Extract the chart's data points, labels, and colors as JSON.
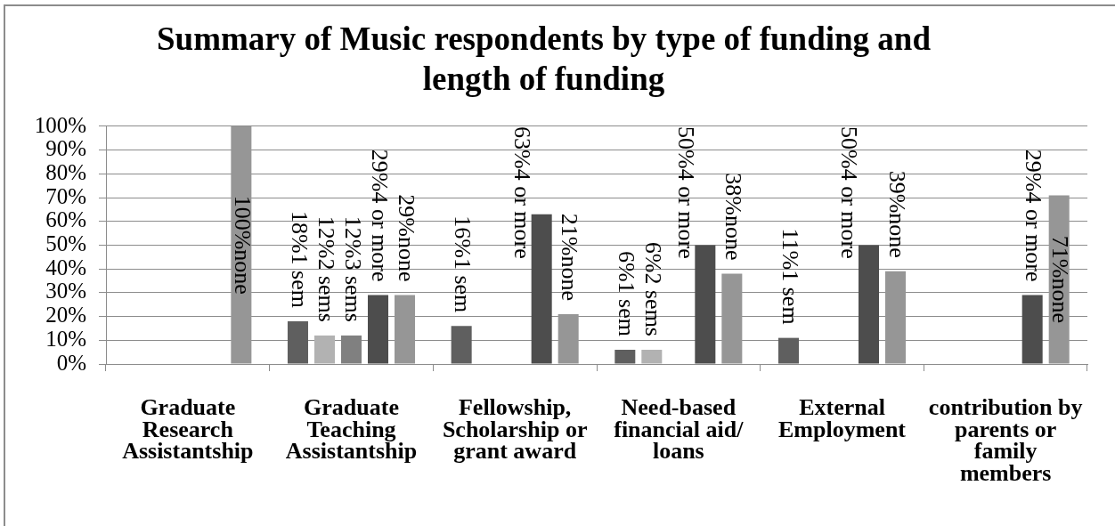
{
  "chart_data": {
    "type": "bar",
    "title": "Summary of Music respondents by type of funding and length of funding",
    "categories": [
      "Graduate Research Assistantship",
      "Graduate Teaching Assistantship",
      "Fellowship, Scholarship or grant award",
      "Need-based financial aid/ loans",
      "External Employment",
      "contribution by parents or family members"
    ],
    "series": [
      {
        "name": "1 sem",
        "color": "#5f5f5f",
        "values": [
          null,
          18,
          16,
          6,
          11,
          null
        ],
        "value_labels": [
          null,
          "18%",
          "16%",
          "6%",
          "11%",
          null
        ]
      },
      {
        "name": "2 sems",
        "color": "#b2b2b2",
        "values": [
          null,
          12,
          null,
          6,
          null,
          null
        ],
        "value_labels": [
          null,
          "12%",
          null,
          "6%",
          null,
          null
        ]
      },
      {
        "name": "3 sems",
        "color": "#808080",
        "values": [
          null,
          12,
          null,
          null,
          null,
          null
        ],
        "value_labels": [
          null,
          "12%",
          null,
          null,
          null,
          null
        ]
      },
      {
        "name": "4 or more",
        "color": "#4d4d4d",
        "values": [
          null,
          29,
          63,
          50,
          50,
          29
        ],
        "value_labels": [
          null,
          "29%",
          "63%",
          "50%",
          "50%",
          "29%"
        ]
      },
      {
        "name": "none",
        "color": "#969696",
        "values": [
          100,
          29,
          21,
          38,
          39,
          71
        ],
        "value_labels": [
          "100%",
          "29%",
          "21%",
          "38%",
          "39%",
          "71%"
        ]
      }
    ],
    "ylim": [
      0,
      100
    ],
    "yticks": [
      {
        "value": 0,
        "label": "0%"
      },
      {
        "value": 10,
        "label": "10%"
      },
      {
        "value": 20,
        "label": "20%"
      },
      {
        "value": 30,
        "label": "30%"
      },
      {
        "value": 40,
        "label": "40%"
      },
      {
        "value": 50,
        "label": "50%"
      },
      {
        "value": 60,
        "label": "60%"
      },
      {
        "value": 70,
        "label": "70%"
      },
      {
        "value": 80,
        "label": "80%"
      },
      {
        "value": 90,
        "label": "90%"
      },
      {
        "value": 100,
        "label": "100%"
      }
    ],
    "grid": "y"
  }
}
